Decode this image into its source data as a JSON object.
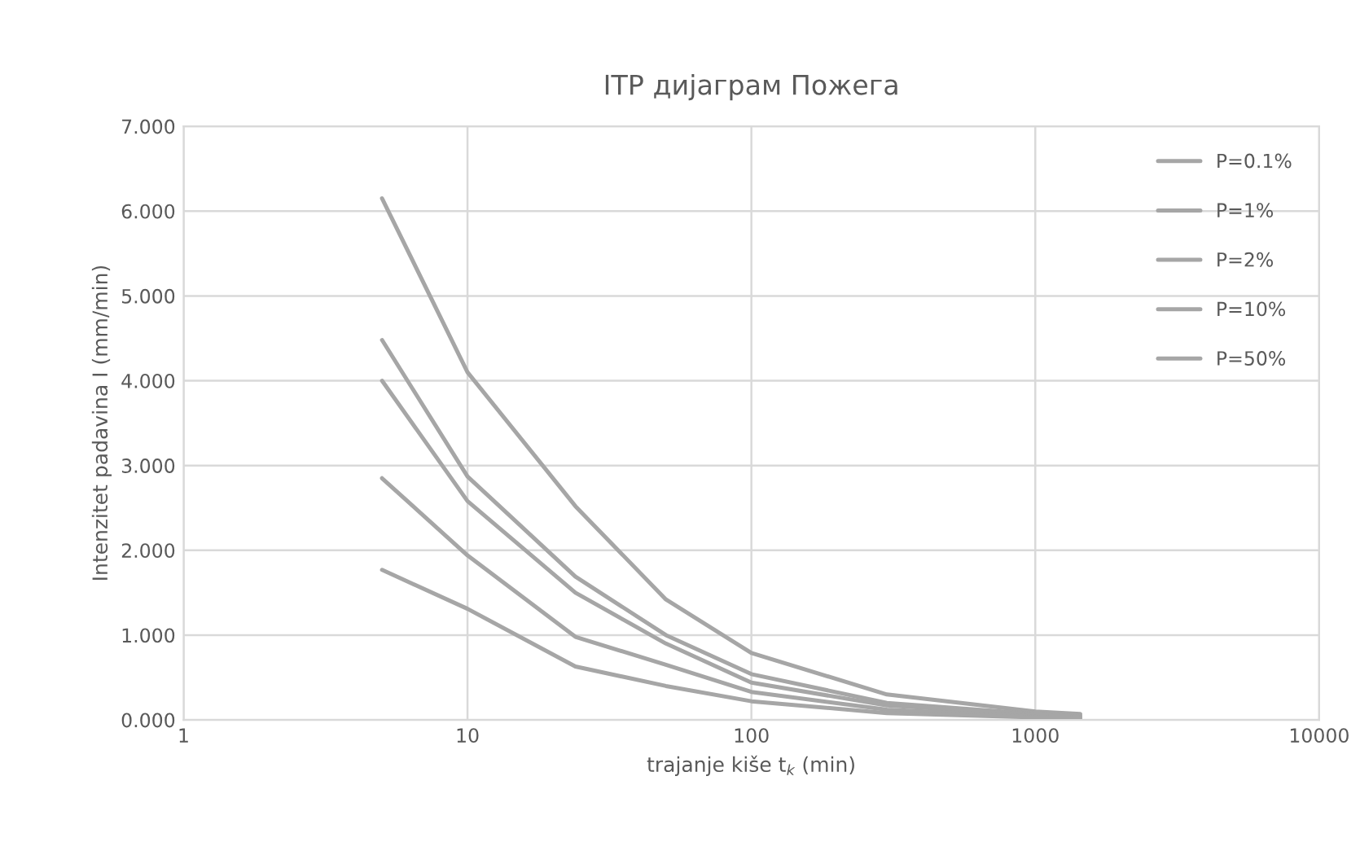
{
  "chart_data": {
    "type": "line",
    "title": "ITP дијаграм Пожега",
    "xlabel": "trajanje kiše t$_{k}$ (min)",
    "ylabel": "Intenzitet padavina I (mm/min)",
    "log": "x",
    "xlim": [
      1,
      10000
    ],
    "xticks": [
      1,
      10,
      100,
      1000,
      10000
    ],
    "ylim": [
      0,
      7
    ],
    "yticks": [
      {
        "value": 0,
        "label": "0.000"
      },
      {
        "value": 1,
        "label": "1.000"
      },
      {
        "value": 2,
        "label": "2.000"
      },
      {
        "value": 3,
        "label": "3.000"
      },
      {
        "value": 4,
        "label": "4.000"
      },
      {
        "value": 5,
        "label": "5.000"
      },
      {
        "value": 6,
        "label": "6.000"
      },
      {
        "value": 7,
        "label": "7.000"
      }
    ],
    "grid": true,
    "legend": "top right",
    "marker": "none",
    "line_style": "solid",
    "x": [
      5,
      10,
      24,
      50,
      100,
      300,
      1000,
      1440
    ],
    "series": [
      {
        "name": "P=0.1%",
        "color": "#a6a6a6",
        "values": [
          6.15,
          4.1,
          2.52,
          1.42,
          0.79,
          0.3,
          0.1,
          0.07
        ]
      },
      {
        "name": "P=1%",
        "color": "#a6a6a6",
        "values": [
          4.48,
          2.87,
          1.69,
          1.0,
          0.54,
          0.2,
          0.07,
          0.05
        ]
      },
      {
        "name": "P=2%",
        "color": "#a6a6a6",
        "values": [
          4.0,
          2.58,
          1.5,
          0.9,
          0.44,
          0.17,
          0.06,
          0.04
        ]
      },
      {
        "name": "P=10%",
        "color": "#a6a6a6",
        "values": [
          2.85,
          1.94,
          0.98,
          0.65,
          0.33,
          0.12,
          0.04,
          0.03
        ]
      },
      {
        "name": "P=50%",
        "color": "#a6a6a6",
        "values": [
          1.77,
          1.31,
          0.63,
          0.4,
          0.22,
          0.08,
          0.03,
          0.02
        ]
      }
    ]
  }
}
